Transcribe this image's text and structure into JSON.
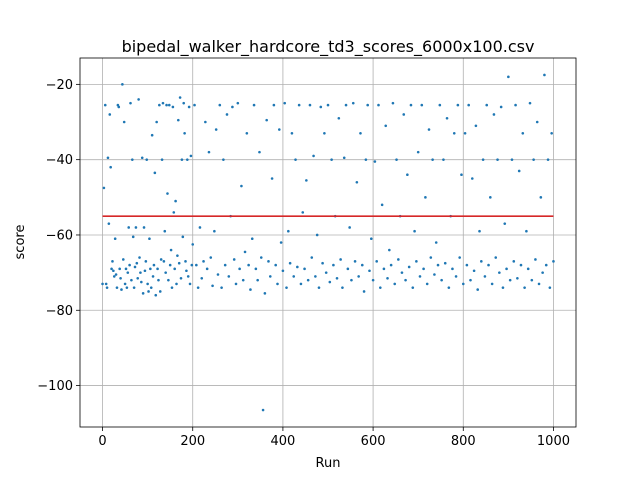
{
  "chart_data": {
    "type": "scatter",
    "title": "bipedal_walker_hardcore_td3_scores_6000x100.csv",
    "xlabel": "Run",
    "ylabel": "score",
    "xlim": [
      -50,
      1050
    ],
    "ylim": [
      -111,
      -13
    ],
    "xticks": [
      0,
      200,
      400,
      600,
      800,
      1000
    ],
    "yticks": [
      -100,
      -80,
      -60,
      -40,
      -20
    ],
    "xtick_labels": [
      "0",
      "200",
      "400",
      "600",
      "800",
      "1000"
    ],
    "ytick_labels": [
      "−100",
      "−80",
      "−60",
      "−40",
      "−20"
    ],
    "grid": true,
    "point_color": "#1f77b4",
    "mean_line": {
      "y": -55,
      "x_start": 0,
      "x_end": 1000,
      "color": "#d62728"
    },
    "series": [
      {
        "values_description_free": true,
        "points": [
          [
            0,
            -73
          ],
          [
            3,
            -47.5
          ],
          [
            6,
            -25.5
          ],
          [
            8,
            -73
          ],
          [
            10,
            -74
          ],
          [
            12,
            -39.5
          ],
          [
            14,
            -57
          ],
          [
            16,
            -28
          ],
          [
            18,
            -42
          ],
          [
            20,
            -69
          ],
          [
            22,
            -67
          ],
          [
            24,
            -69.5
          ],
          [
            26,
            -71
          ],
          [
            28,
            -61
          ],
          [
            30,
            -70.5
          ],
          [
            32,
            -74
          ],
          [
            34,
            -25.5
          ],
          [
            36,
            -26
          ],
          [
            38,
            -69
          ],
          [
            40,
            -71.5
          ],
          [
            42,
            -74.5
          ],
          [
            44,
            -20
          ],
          [
            46,
            -66.5
          ],
          [
            48,
            -30
          ],
          [
            50,
            -73
          ],
          [
            52,
            -69
          ],
          [
            54,
            -74
          ],
          [
            56,
            -70
          ],
          [
            58,
            -58
          ],
          [
            60,
            -68
          ],
          [
            62,
            -25
          ],
          [
            64,
            -72
          ],
          [
            66,
            -40
          ],
          [
            68,
            -60.5
          ],
          [
            70,
            -74
          ],
          [
            72,
            -68.5
          ],
          [
            74,
            -58
          ],
          [
            76,
            -67.5
          ],
          [
            78,
            -71.5
          ],
          [
            80,
            -24
          ],
          [
            82,
            -66
          ],
          [
            84,
            -70
          ],
          [
            86,
            -72.5
          ],
          [
            88,
            -39.5
          ],
          [
            90,
            -75.5
          ],
          [
            92,
            -58
          ],
          [
            94,
            -69.5
          ],
          [
            96,
            -67
          ],
          [
            98,
            -40
          ],
          [
            100,
            -73
          ],
          [
            102,
            -75
          ],
          [
            104,
            -61
          ],
          [
            106,
            -69
          ],
          [
            108,
            -74
          ],
          [
            110,
            -33.5
          ],
          [
            112,
            -71
          ],
          [
            114,
            -68
          ],
          [
            116,
            -43.5
          ],
          [
            118,
            -76
          ],
          [
            120,
            -30
          ],
          [
            122,
            -69
          ],
          [
            124,
            -72
          ],
          [
            126,
            -25.5
          ],
          [
            128,
            -75
          ],
          [
            130,
            -66.5
          ],
          [
            132,
            -40
          ],
          [
            134,
            -25
          ],
          [
            136,
            -67
          ],
          [
            138,
            -59
          ],
          [
            140,
            -70
          ],
          [
            142,
            -25.5
          ],
          [
            144,
            -49
          ],
          [
            146,
            -72
          ],
          [
            148,
            -25.5
          ],
          [
            150,
            -68
          ],
          [
            152,
            -64
          ],
          [
            154,
            -74
          ],
          [
            156,
            -26
          ],
          [
            158,
            -54
          ],
          [
            160,
            -69
          ],
          [
            162,
            -51
          ],
          [
            164,
            -73
          ],
          [
            166,
            -65.5
          ],
          [
            168,
            -29.5
          ],
          [
            170,
            -67.5
          ],
          [
            172,
            -23.5
          ],
          [
            174,
            -71.5
          ],
          [
            176,
            -40
          ],
          [
            178,
            -60.5
          ],
          [
            180,
            -25
          ],
          [
            182,
            -33
          ],
          [
            184,
            -67
          ],
          [
            186,
            -69.5
          ],
          [
            188,
            -40
          ],
          [
            190,
            -71
          ],
          [
            192,
            -26
          ],
          [
            194,
            -73
          ],
          [
            196,
            -39
          ],
          [
            198,
            -68
          ],
          [
            200,
            -62.5
          ],
          [
            204,
            -25.5
          ],
          [
            208,
            -68
          ],
          [
            212,
            -74
          ],
          [
            216,
            -58
          ],
          [
            220,
            -71.5
          ],
          [
            224,
            -67
          ],
          [
            228,
            -30
          ],
          [
            232,
            -69
          ],
          [
            236,
            -38
          ],
          [
            240,
            -66
          ],
          [
            244,
            -73.5
          ],
          [
            248,
            -59
          ],
          [
            252,
            -32
          ],
          [
            256,
            -70.5
          ],
          [
            260,
            -25.5
          ],
          [
            264,
            -74
          ],
          [
            268,
            -40
          ],
          [
            272,
            -68
          ],
          [
            276,
            -28
          ],
          [
            280,
            -71
          ],
          [
            284,
            -55
          ],
          [
            288,
            -26
          ],
          [
            292,
            -66.5
          ],
          [
            296,
            -73
          ],
          [
            300,
            -25
          ],
          [
            304,
            -69
          ],
          [
            308,
            -47
          ],
          [
            312,
            -72
          ],
          [
            316,
            -64.5
          ],
          [
            320,
            -33
          ],
          [
            324,
            -68
          ],
          [
            328,
            -74.5
          ],
          [
            332,
            -61
          ],
          [
            336,
            -25.5
          ],
          [
            340,
            -69
          ],
          [
            344,
            -72
          ],
          [
            348,
            -38
          ],
          [
            352,
            -66
          ],
          [
            356,
            -106.5
          ],
          [
            360,
            -75.5
          ],
          [
            364,
            -29.5
          ],
          [
            368,
            -67
          ],
          [
            372,
            -71
          ],
          [
            376,
            -45
          ],
          [
            380,
            -25.5
          ],
          [
            384,
            -68
          ],
          [
            388,
            -73
          ],
          [
            392,
            -32
          ],
          [
            396,
            -62
          ],
          [
            400,
            -69.5
          ],
          [
            404,
            -25
          ],
          [
            408,
            -74
          ],
          [
            412,
            -59
          ],
          [
            416,
            -67.5
          ],
          [
            420,
            -33
          ],
          [
            424,
            -71
          ],
          [
            428,
            -40
          ],
          [
            432,
            -68.5
          ],
          [
            436,
            -25.5
          ],
          [
            440,
            -73
          ],
          [
            444,
            -54
          ],
          [
            448,
            -69
          ],
          [
            452,
            -45.5
          ],
          [
            456,
            -72
          ],
          [
            460,
            -25.5
          ],
          [
            464,
            -66
          ],
          [
            468,
            -39
          ],
          [
            472,
            -71
          ],
          [
            476,
            -60
          ],
          [
            480,
            -74
          ],
          [
            484,
            -26
          ],
          [
            488,
            -67.5
          ],
          [
            492,
            -33
          ],
          [
            496,
            -70
          ],
          [
            500,
            -25.5
          ],
          [
            504,
            -72.5
          ],
          [
            508,
            -40
          ],
          [
            512,
            -68
          ],
          [
            516,
            -55
          ],
          [
            520,
            -71.5
          ],
          [
            524,
            -29
          ],
          [
            528,
            -66.5
          ],
          [
            532,
            -74
          ],
          [
            536,
            -39.5
          ],
          [
            540,
            -25.5
          ],
          [
            544,
            -69
          ],
          [
            548,
            -58
          ],
          [
            552,
            -72
          ],
          [
            556,
            -25
          ],
          [
            560,
            -67
          ],
          [
            564,
            -46
          ],
          [
            568,
            -71
          ],
          [
            572,
            -33
          ],
          [
            576,
            -68
          ],
          [
            580,
            -75
          ],
          [
            584,
            -40
          ],
          [
            588,
            -25.5
          ],
          [
            592,
            -69.5
          ],
          [
            596,
            -61
          ],
          [
            600,
            -72
          ],
          [
            604,
            -40.5
          ],
          [
            608,
            -67
          ],
          [
            612,
            -25.5
          ],
          [
            616,
            -74
          ],
          [
            620,
            -52
          ],
          [
            624,
            -69
          ],
          [
            628,
            -31
          ],
          [
            632,
            -71.5
          ],
          [
            636,
            -64
          ],
          [
            640,
            -68
          ],
          [
            644,
            -25
          ],
          [
            648,
            -73
          ],
          [
            652,
            -40
          ],
          [
            656,
            -66.5
          ],
          [
            660,
            -55
          ],
          [
            664,
            -70
          ],
          [
            668,
            -28
          ],
          [
            672,
            -72
          ],
          [
            676,
            -44
          ],
          [
            680,
            -68.5
          ],
          [
            684,
            -25.5
          ],
          [
            688,
            -74
          ],
          [
            692,
            -59
          ],
          [
            696,
            -67
          ],
          [
            700,
            -38
          ],
          [
            704,
            -71
          ],
          [
            708,
            -25.5
          ],
          [
            712,
            -69
          ],
          [
            716,
            -50
          ],
          [
            720,
            -73
          ],
          [
            724,
            -32
          ],
          [
            728,
            -66
          ],
          [
            732,
            -40
          ],
          [
            736,
            -70.5
          ],
          [
            740,
            -62
          ],
          [
            744,
            -68
          ],
          [
            748,
            -25.5
          ],
          [
            752,
            -72
          ],
          [
            756,
            -40
          ],
          [
            760,
            -67.5
          ],
          [
            764,
            -29
          ],
          [
            768,
            -74
          ],
          [
            772,
            -55
          ],
          [
            776,
            -69
          ],
          [
            780,
            -33
          ],
          [
            784,
            -71
          ],
          [
            788,
            -25.5
          ],
          [
            792,
            -66
          ],
          [
            796,
            -44
          ],
          [
            800,
            -73
          ],
          [
            804,
            -33
          ],
          [
            808,
            -68
          ],
          [
            812,
            -25.5
          ],
          [
            816,
            -72
          ],
          [
            820,
            -45
          ],
          [
            824,
            -69.5
          ],
          [
            828,
            -31
          ],
          [
            832,
            -74.5
          ],
          [
            836,
            -59
          ],
          [
            840,
            -67
          ],
          [
            844,
            -40
          ],
          [
            848,
            -71
          ],
          [
            852,
            -25.5
          ],
          [
            856,
            -68
          ],
          [
            860,
            -50
          ],
          [
            864,
            -73
          ],
          [
            868,
            -28
          ],
          [
            872,
            -66
          ],
          [
            876,
            -40
          ],
          [
            880,
            -70
          ],
          [
            884,
            -26
          ],
          [
            888,
            -74
          ],
          [
            892,
            -57
          ],
          [
            896,
            -69
          ],
          [
            900,
            -18
          ],
          [
            904,
            -72
          ],
          [
            908,
            -40
          ],
          [
            912,
            -67
          ],
          [
            916,
            -25.5
          ],
          [
            920,
            -71.5
          ],
          [
            924,
            -43
          ],
          [
            928,
            -68
          ],
          [
            932,
            -33
          ],
          [
            936,
            -74
          ],
          [
            940,
            -59
          ],
          [
            944,
            -69
          ],
          [
            948,
            -25
          ],
          [
            952,
            -72
          ],
          [
            956,
            -40
          ],
          [
            960,
            -66.5
          ],
          [
            964,
            -30
          ],
          [
            968,
            -73
          ],
          [
            972,
            -50
          ],
          [
            976,
            -70
          ],
          [
            980,
            -17.5
          ],
          [
            984,
            -68
          ],
          [
            988,
            -40
          ],
          [
            992,
            -74
          ],
          [
            996,
            -33
          ],
          [
            1000,
            -67
          ]
        ]
      }
    ]
  }
}
